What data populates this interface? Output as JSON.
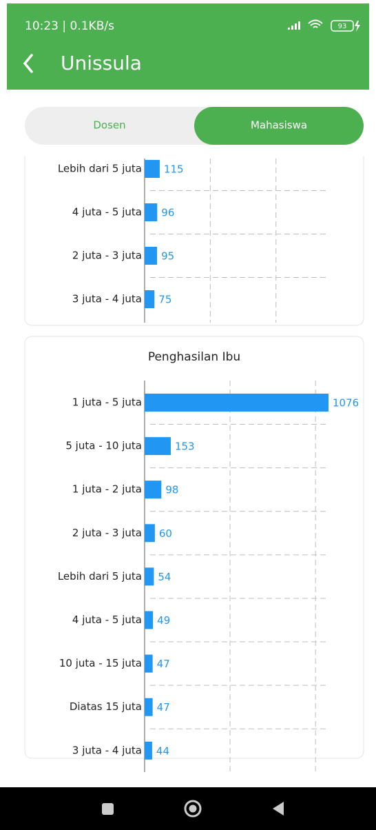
{
  "status_bar": {
    "time": "10:23 | 0.1KB/s",
    "battery": "93"
  },
  "app_bar": {
    "title": "Unissula"
  },
  "tabs": [
    "Dosen",
    "Mahasiswa"
  ],
  "chart_data": [
    {
      "type": "bar",
      "orientation": "horizontal",
      "color": "#2196f3",
      "grid": true,
      "categories": [
        "Lebih dari 5 juta",
        "4 juta - 5 juta",
        "2 juta - 3 juta",
        "3 juta - 4 juta"
      ],
      "values": [
        115,
        96,
        95,
        75
      ],
      "xlim": [
        0,
        1400
      ],
      "xticks": [
        500,
        1000
      ]
    },
    {
      "type": "bar",
      "orientation": "horizontal",
      "color": "#2196f3",
      "grid": true,
      "title": "Penghasilan Ibu",
      "categories": [
        "1 juta - 5 juta",
        "5 juta - 10 juta",
        "1 juta - 2 juta",
        "2 juta - 3 juta",
        "Lebih dari 5 juta",
        "4 juta - 5 juta",
        "10 juta - 15 juta",
        "Diatas 15 juta",
        "3 juta - 4 juta"
      ],
      "values": [
        1076,
        153,
        98,
        60,
        54,
        49,
        47,
        47,
        44
      ],
      "xlim": [
        0,
        1076
      ],
      "xticks": [
        500,
        1000
      ]
    }
  ]
}
